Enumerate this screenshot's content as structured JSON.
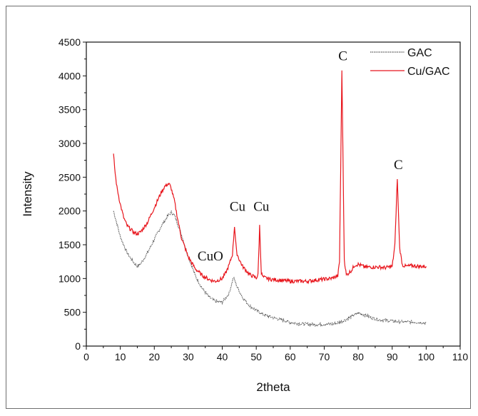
{
  "chart_data": {
    "type": "line",
    "xlabel": "2theta",
    "ylabel": "Intensity",
    "xlim": [
      0,
      110
    ],
    "ylim": [
      0,
      4500
    ],
    "xticks": [
      "0",
      "10",
      "20",
      "30",
      "40",
      "50",
      "60",
      "70",
      "80",
      "90",
      "100",
      "110"
    ],
    "yticks": [
      "0",
      "500",
      "1000",
      "1500",
      "2000",
      "2500",
      "3000",
      "3500",
      "4000",
      "4500"
    ],
    "grid": false,
    "legend_position": "top-right",
    "series": [
      {
        "name": "GAC",
        "color": "#555555",
        "style": "dotted",
        "x": [
          8,
          10,
          12,
          14,
          15,
          16,
          18,
          20,
          22,
          24,
          25,
          26,
          28,
          30,
          32,
          34,
          36,
          38,
          40,
          42,
          43.3,
          44.5,
          46,
          48,
          50,
          52,
          55,
          58,
          60,
          63,
          66,
          70,
          73,
          76,
          78,
          80,
          82,
          84,
          86,
          88,
          90,
          92,
          94,
          96,
          98,
          100
        ],
        "y": [
          2000,
          1620,
          1380,
          1230,
          1180,
          1220,
          1380,
          1580,
          1770,
          1930,
          1980,
          1930,
          1650,
          1320,
          1050,
          860,
          730,
          660,
          650,
          780,
          1020,
          860,
          720,
          600,
          530,
          470,
          420,
          380,
          350,
          330,
          320,
          320,
          330,
          380,
          440,
          490,
          460,
          420,
          390,
          380,
          370,
          360,
          360,
          355,
          350,
          345
        ]
      },
      {
        "name": "Cu/GAC",
        "color": "#e8161d",
        "style": "solid",
        "x": [
          8,
          8.5,
          9,
          10,
          11,
          12,
          14,
          15,
          16,
          18,
          20,
          22,
          23,
          24,
          24.5,
          25,
          26,
          27,
          28,
          30,
          32,
          34,
          36,
          37,
          38,
          39,
          40,
          41,
          42,
          43,
          43.6,
          44.2,
          45,
          46,
          48,
          50,
          50.5,
          51,
          51.5,
          52,
          54,
          56,
          58,
          60,
          62,
          65,
          68,
          70,
          72,
          74,
          74.5,
          75.2,
          75.9,
          76.5,
          78,
          79,
          80,
          81,
          82,
          84,
          86,
          88,
          90,
          90.8,
          91.5,
          92.2,
          93,
          94,
          96,
          98,
          100
        ],
        "y": [
          2830,
          2550,
          2350,
          2100,
          1900,
          1780,
          1680,
          1660,
          1690,
          1830,
          2050,
          2270,
          2360,
          2400,
          2390,
          2330,
          2130,
          1850,
          1600,
          1320,
          1150,
          1050,
          990,
          970,
          960,
          980,
          1000,
          1080,
          1200,
          1360,
          1780,
          1390,
          1280,
          1180,
          1060,
          1010,
          1050,
          1780,
          1080,
          1020,
          990,
          980,
          970,
          960,
          960,
          960,
          980,
          990,
          1000,
          1040,
          1250,
          4080,
          1280,
          1050,
          1120,
          1200,
          1210,
          1190,
          1170,
          1170,
          1170,
          1160,
          1180,
          1500,
          2480,
          1450,
          1200,
          1180,
          1190,
          1180,
          1180
        ]
      }
    ],
    "annotations": [
      {
        "text": "CuO",
        "x": 36.5,
        "y": 1270
      },
      {
        "text": "Cu",
        "x": 44.5,
        "y": 2000
      },
      {
        "text": "Cu",
        "x": 51.5,
        "y": 2000
      },
      {
        "text": "C",
        "x": 75.5,
        "y": 4230
      },
      {
        "text": "C",
        "x": 91.8,
        "y": 2620
      }
    ]
  }
}
